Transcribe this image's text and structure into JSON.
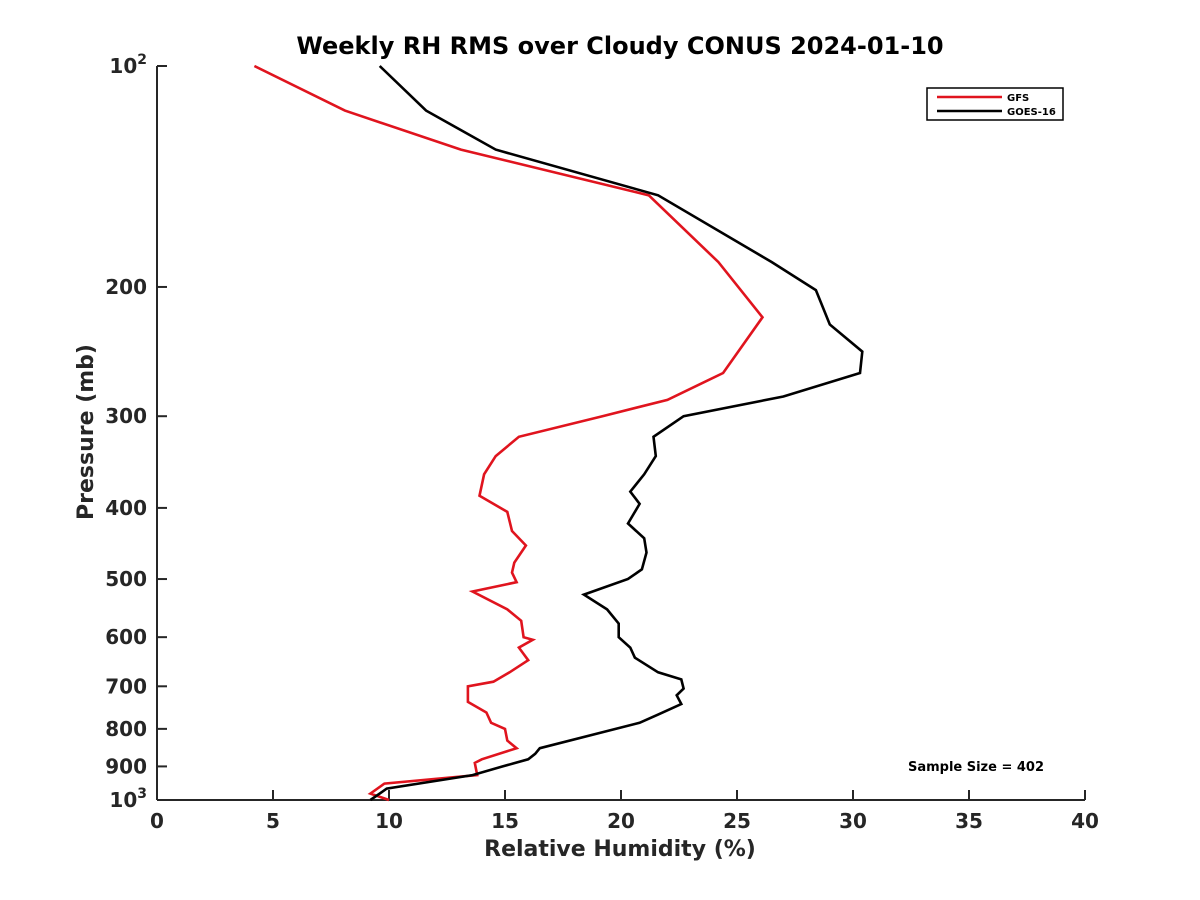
{
  "chart_data": {
    "type": "line",
    "title": "Weekly RH RMS over Cloudy CONUS 2024-01-10",
    "xlabel": "Relative Humidity (%)",
    "ylabel": "Pressure (mb)",
    "xlim": [
      0,
      40
    ],
    "ylim": [
      100,
      1000
    ],
    "y_scale": "log",
    "y_reversed": true,
    "x_ticks": [
      "0",
      "5",
      "10",
      "15",
      "20",
      "25",
      "30",
      "35",
      "40"
    ],
    "y_ticks": [
      {
        "value": 100,
        "base": "10",
        "exp": "2"
      },
      {
        "value": 200,
        "label": "200"
      },
      {
        "value": 300,
        "label": "300"
      },
      {
        "value": 400,
        "label": "400"
      },
      {
        "value": 500,
        "label": "500"
      },
      {
        "value": 600,
        "label": "600"
      },
      {
        "value": 700,
        "label": "700"
      },
      {
        "value": 800,
        "label": "800"
      },
      {
        "value": 900,
        "label": "900"
      },
      {
        "value": 1000,
        "base": "10",
        "exp": "3"
      }
    ],
    "grid": false,
    "legend_position": "top-right",
    "annotation": "Sample Size = 402",
    "series": [
      {
        "name": "GFS",
        "color": "#e0141e",
        "points": [
          [
            4.2,
            100
          ],
          [
            8.1,
            115
          ],
          [
            13.1,
            130
          ],
          [
            21.2,
            150
          ],
          [
            24.2,
            185
          ],
          [
            26.1,
            220
          ],
          [
            24.4,
            262
          ],
          [
            22.0,
            285
          ],
          [
            19.2,
            300
          ],
          [
            15.6,
            320
          ],
          [
            14.6,
            340
          ],
          [
            14.1,
            360
          ],
          [
            13.9,
            385
          ],
          [
            15.1,
            405
          ],
          [
            15.3,
            430
          ],
          [
            15.9,
            450
          ],
          [
            15.4,
            475
          ],
          [
            15.3,
            490
          ],
          [
            15.5,
            505
          ],
          [
            13.6,
            520
          ],
          [
            15.1,
            550
          ],
          [
            15.7,
            570
          ],
          [
            15.8,
            600
          ],
          [
            16.2,
            605
          ],
          [
            15.6,
            620
          ],
          [
            16.0,
            645
          ],
          [
            15.2,
            670
          ],
          [
            14.5,
            690
          ],
          [
            13.4,
            700
          ],
          [
            13.4,
            735
          ],
          [
            14.2,
            760
          ],
          [
            14.4,
            785
          ],
          [
            15.0,
            800
          ],
          [
            15.1,
            830
          ],
          [
            15.5,
            850
          ],
          [
            14.0,
            880
          ],
          [
            13.7,
            890
          ],
          [
            13.8,
            925
          ],
          [
            9.8,
            950
          ],
          [
            9.2,
            980
          ],
          [
            10.0,
            1000
          ]
        ]
      },
      {
        "name": "GOES-16",
        "color": "#000000",
        "points": [
          [
            9.6,
            100
          ],
          [
            11.6,
            115
          ],
          [
            14.6,
            130
          ],
          [
            21.6,
            150
          ],
          [
            26.5,
            185
          ],
          [
            28.4,
            202
          ],
          [
            29.0,
            225
          ],
          [
            30.4,
            245
          ],
          [
            30.3,
            262
          ],
          [
            27.0,
            282
          ],
          [
            22.7,
            300
          ],
          [
            21.4,
            320
          ],
          [
            21.5,
            340
          ],
          [
            21.0,
            360
          ],
          [
            20.4,
            380
          ],
          [
            20.8,
            395
          ],
          [
            20.3,
            420
          ],
          [
            21.0,
            440
          ],
          [
            21.1,
            460
          ],
          [
            20.9,
            485
          ],
          [
            20.3,
            500
          ],
          [
            18.4,
            525
          ],
          [
            19.4,
            550
          ],
          [
            19.9,
            575
          ],
          [
            19.9,
            600
          ],
          [
            20.4,
            620
          ],
          [
            20.6,
            640
          ],
          [
            21.6,
            670
          ],
          [
            22.6,
            685
          ],
          [
            22.7,
            705
          ],
          [
            22.4,
            720
          ],
          [
            22.6,
            740
          ],
          [
            21.6,
            765
          ],
          [
            20.8,
            785
          ],
          [
            16.5,
            850
          ],
          [
            16.3,
            865
          ],
          [
            16.0,
            880
          ],
          [
            14.9,
            900
          ],
          [
            13.6,
            925
          ],
          [
            9.9,
            965
          ],
          [
            9.6,
            980
          ],
          [
            9.2,
            1000
          ]
        ]
      }
    ]
  }
}
